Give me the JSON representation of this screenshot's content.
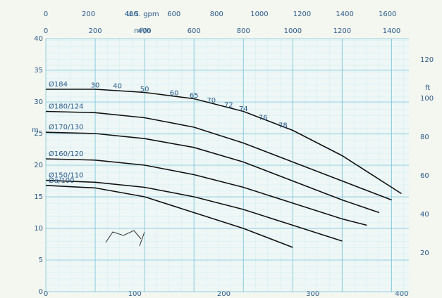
{
  "chart_data": {
    "type": "line",
    "x_label": "m³/h",
    "x2_label": "U.S. gpm",
    "y_label": "m",
    "y2_label": "ft",
    "xlim": [
      0,
      1470
    ],
    "xticks": [
      0,
      200,
      400,
      600,
      800,
      1000,
      1200,
      1400
    ],
    "x2lim": [
      0,
      1700
    ],
    "x2ticks": [
      0,
      200,
      400,
      600,
      800,
      1000,
      1200,
      1400,
      1600
    ],
    "x3lim": [
      0,
      408
    ],
    "x3ticks": [
      0,
      100,
      200,
      300,
      400
    ],
    "ylim": [
      0,
      40
    ],
    "yticks": [
      0,
      5,
      10,
      15,
      20,
      25,
      30,
      35,
      40
    ],
    "y2lim": [
      0,
      131
    ],
    "y2ticks": [
      20,
      40,
      60,
      80,
      100,
      120
    ],
    "grid": true,
    "series": [
      {
        "name": "Ø184",
        "color": "#111111",
        "x": [
          0,
          200,
          400,
          600,
          800,
          1000,
          1200,
          1440
        ],
        "values": [
          32,
          32,
          31.5,
          30.5,
          28.5,
          25.5,
          21.5,
          15.5
        ]
      },
      {
        "name": "Ø180/124",
        "color": "#111111",
        "x": [
          0,
          200,
          400,
          600,
          800,
          1000,
          1200,
          1400
        ],
        "values": [
          28.5,
          28.3,
          27.5,
          26,
          23.5,
          20.5,
          17.5,
          14.5
        ]
      },
      {
        "name": "Ø170/130",
        "color": "#111111",
        "x": [
          0,
          200,
          400,
          600,
          800,
          1000,
          1200,
          1350
        ],
        "values": [
          25.2,
          25,
          24.2,
          22.8,
          20.5,
          17.5,
          14.5,
          12.5
        ]
      },
      {
        "name": "Ø160/120",
        "color": "#111111",
        "x": [
          0,
          200,
          400,
          600,
          800,
          1000,
          1200,
          1300
        ],
        "values": [
          21,
          20.8,
          20,
          18.5,
          16.5,
          14,
          11.5,
          10.5
        ]
      },
      {
        "name": "Ø150/110",
        "color": "#111111",
        "x": [
          0,
          200,
          400,
          600,
          800,
          1000,
          1200
        ],
        "values": [
          17.6,
          17.3,
          16.5,
          15,
          13,
          10.5,
          8
        ]
      },
      {
        "name": "Øa/100",
        "color": "#111111",
        "x": [
          0,
          200,
          400,
          600,
          800,
          1000
        ],
        "values": [
          16.8,
          16.4,
          15,
          12.5,
          10,
          7
        ]
      }
    ],
    "efficiency_labels": [
      {
        "value": 30,
        "x": 200,
        "y": 32.6
      },
      {
        "value": 40,
        "x": 290,
        "y": 32.5
      },
      {
        "value": 50,
        "x": 400,
        "y": 32
      },
      {
        "value": 60,
        "x": 520,
        "y": 31.4
      },
      {
        "value": 65,
        "x": 600,
        "y": 31
      },
      {
        "value": 70,
        "x": 670,
        "y": 30.2
      },
      {
        "value": 72,
        "x": 740,
        "y": 29.5
      },
      {
        "value": 74,
        "x": 800,
        "y": 28.9
      },
      {
        "value": 76,
        "x": 880,
        "y": 27.5
      },
      {
        "value": 78,
        "x": 960,
        "y": 26.3
      }
    ]
  }
}
